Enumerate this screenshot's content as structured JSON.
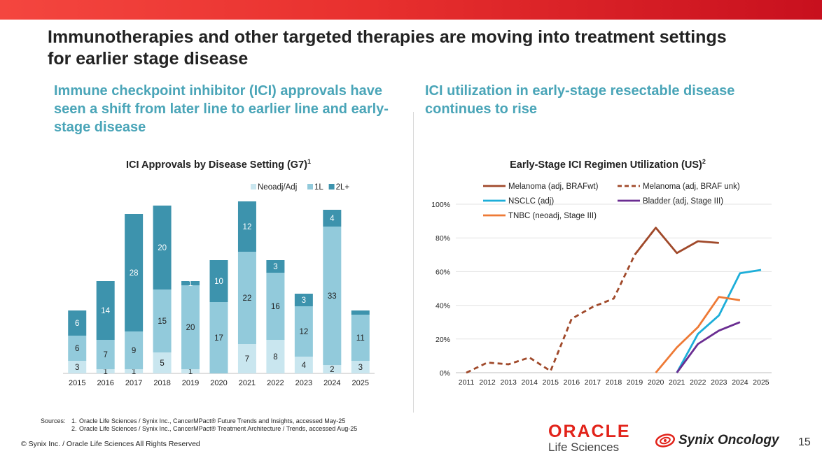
{
  "slide": {
    "title": "Immunotherapies and other targeted therapies are moving into treatment settings for earlier stage disease",
    "left_subtitle": "Immune checkpoint inhibitor (ICI) approvals have seen a shift from later line to earlier line and early-stage disease",
    "right_subtitle": "ICI utilization in early-stage resectable disease continues to rise",
    "sources_label": "Sources:",
    "sources": [
      {
        "num": "1.",
        "text": "Oracle Life Sciences / Synix Inc., CancerMPact® Future Trends and Insights, accessed May-25"
      },
      {
        "num": "2.",
        "text": "Oracle Life Sciences / Synix Inc., CancerMPact® Treatment Architecture / Trends, accessed Aug-25"
      }
    ],
    "copyright": "© Synix Inc. / Oracle Life Sciences All Rights Reserved",
    "oracle_brand": "ORACLE",
    "oracle_sub": "Life Sciences",
    "synix_brand": "Synix Oncology",
    "page_number": "15",
    "colors": {
      "accent": "#4aa5b8",
      "red": "#e2231a"
    }
  },
  "chart_data": [
    {
      "type": "bar",
      "stacked": true,
      "title": "ICI Approvals by Disease Setting (G7)",
      "title_sup": "1",
      "categories": [
        "2015",
        "2016",
        "2017",
        "2018",
        "2019",
        "2020",
        "2021",
        "2022",
        "2023",
        "2024",
        "2025"
      ],
      "series": [
        {
          "name": "Neoadj/Adj",
          "color": "#c9e6ef",
          "values": [
            3,
            1,
            1,
            5,
            1,
            0,
            7,
            8,
            4,
            2,
            3
          ],
          "labels": [
            "3",
            "1",
            "1",
            "5",
            "1",
            "",
            "7",
            "8",
            "4",
            "2",
            "3"
          ]
        },
        {
          "name": "1L",
          "color": "#92cadb",
          "values": [
            6,
            7,
            9,
            15,
            20,
            17,
            22,
            16,
            12,
            33,
            11
          ],
          "labels": [
            "6",
            "7",
            "9",
            "15",
            "20",
            "17",
            "22",
            "16",
            "12",
            "33",
            "11"
          ]
        },
        {
          "name": "2L+",
          "color": "#3d93ad",
          "values": [
            6,
            14,
            28,
            20,
            1,
            10,
            12,
            3,
            3,
            4,
            1
          ],
          "labels": [
            "6",
            "14",
            "28",
            "20",
            "1",
            "10",
            "12",
            "3",
            "3",
            "4",
            ""
          ]
        }
      ],
      "legend": "top-right"
    },
    {
      "type": "line",
      "title": "Early-Stage ICI Regimen Utilization (US)",
      "title_sup": "2",
      "x": [
        2011,
        2012,
        2013,
        2014,
        2015,
        2016,
        2017,
        2018,
        2019,
        2020,
        2021,
        2022,
        2023,
        2024,
        2025
      ],
      "x_tick_labels": [
        "2011",
        "2012",
        "2013",
        "2014",
        "2015",
        "2016",
        "2017",
        "2018",
        "2019",
        "2020",
        "2021",
        "2022",
        "2023",
        "2024",
        "2025"
      ],
      "ylim": [
        0,
        100
      ],
      "y_ticks": [
        0,
        20,
        40,
        60,
        80,
        100
      ],
      "y_tick_labels": [
        "0%",
        "20%",
        "40%",
        "60%",
        "80%",
        "100%"
      ],
      "grid": true,
      "series": [
        {
          "name": "Melanoma (adj, BRAFwt)",
          "color": "#a0492a",
          "dashed": false,
          "x": [
            2019,
            2020,
            2021,
            2022,
            2023
          ],
          "values": [
            70,
            86,
            71,
            78,
            77
          ]
        },
        {
          "name": "Melanoma (adj, BRAF unk)",
          "color": "#a0492a",
          "dashed": true,
          "x": [
            2011,
            2012,
            2013,
            2014,
            2015,
            2016,
            2017,
            2018,
            2019,
            2020
          ],
          "values": [
            0,
            6,
            5,
            9,
            1,
            32,
            39,
            44,
            70,
            86
          ]
        },
        {
          "name": "NSCLC (adj)",
          "color": "#1daed9",
          "dashed": false,
          "x": [
            2021,
            2022,
            2023,
            2024,
            2025
          ],
          "values": [
            0,
            23,
            34,
            59,
            61
          ]
        },
        {
          "name": "Bladder (adj, Stage III)",
          "color": "#6a2d91",
          "dashed": false,
          "x": [
            2021,
            2022,
            2023,
            2024
          ],
          "values": [
            0,
            17,
            25,
            30
          ]
        },
        {
          "name": "TNBC (neoadj, Stage III)",
          "color": "#ee7a36",
          "dashed": false,
          "x": [
            2020,
            2021,
            2022,
            2023,
            2024
          ],
          "values": [
            0,
            15,
            27,
            45,
            43
          ]
        }
      ],
      "legend": "top"
    }
  ]
}
